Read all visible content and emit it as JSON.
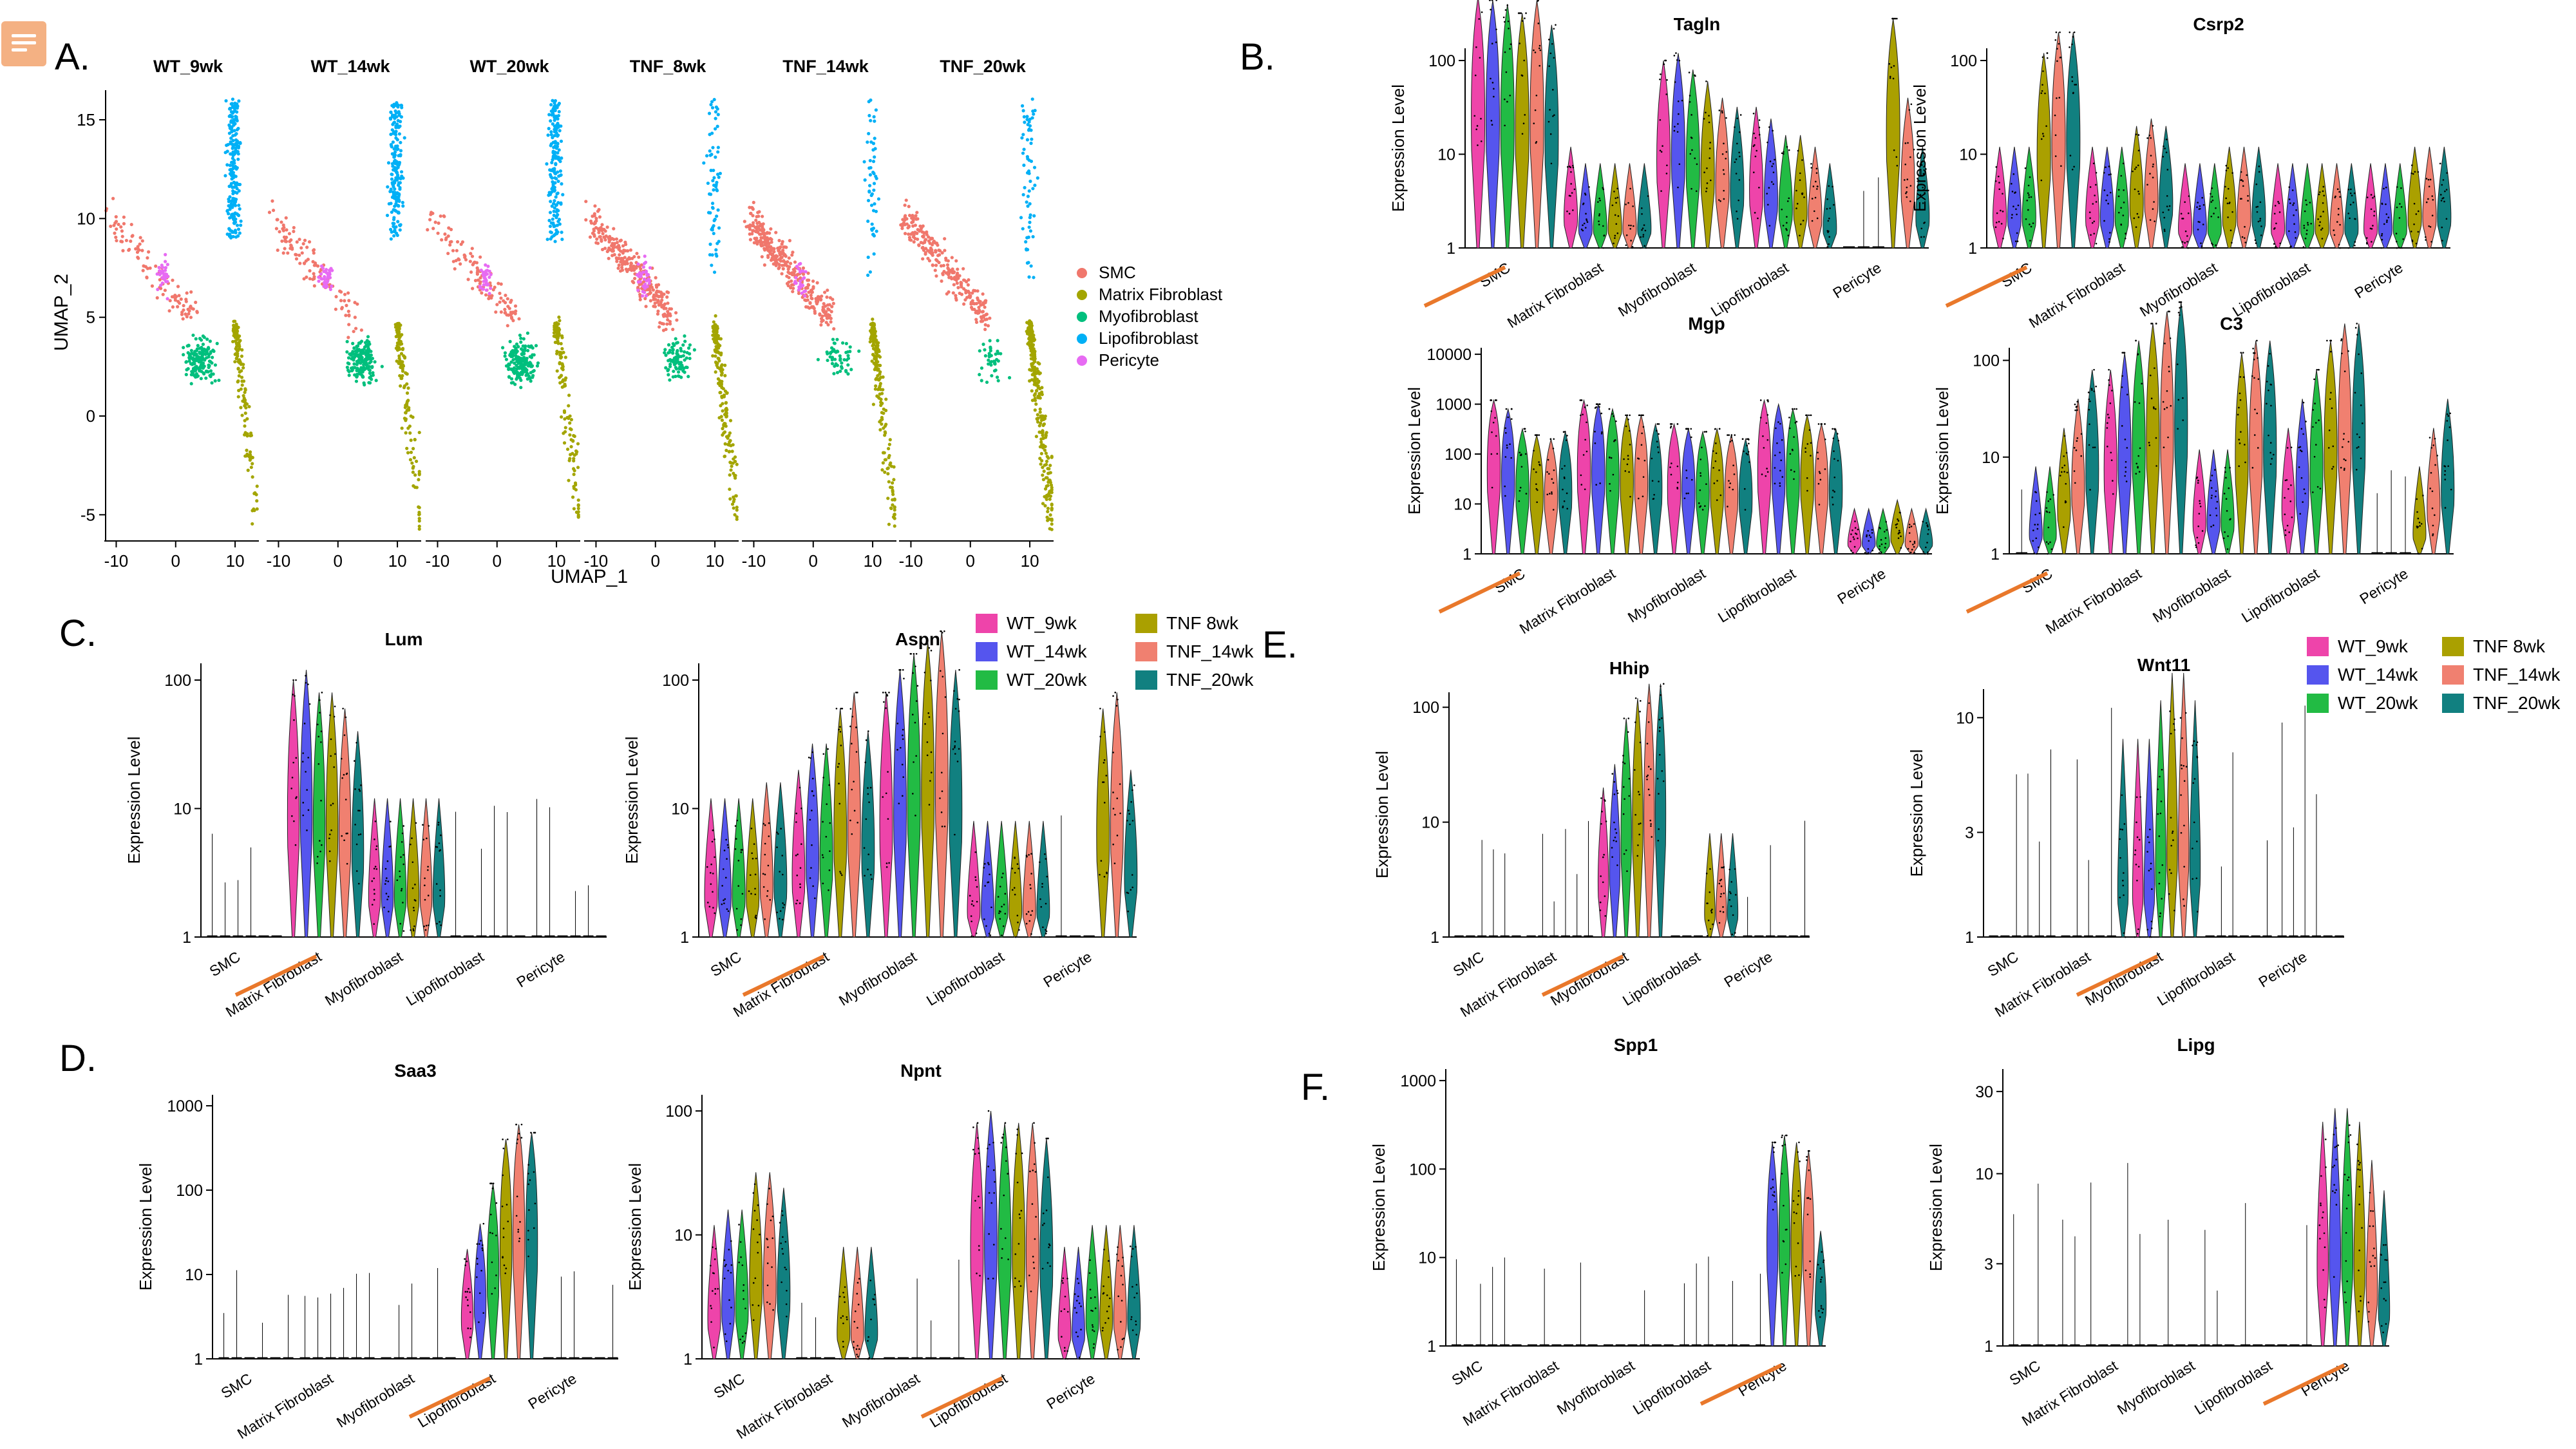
{
  "panel_letters": {
    "a": "A.",
    "b": "B.",
    "c": "C.",
    "d": "D.",
    "e": "E.",
    "f": "F."
  },
  "cell_types": [
    "SMC",
    "Matrix Fibroblast",
    "Myofibroblast",
    "Lipofibroblast",
    "Pericyte"
  ],
  "groups": [
    "WT_9wk",
    "WT_14wk",
    "WT_20wk",
    "TNF_8wk",
    "TNF_14wk",
    "TNF_20wk"
  ],
  "umap_legend": [
    {
      "label": "SMC",
      "color": "#f0776c"
    },
    {
      "label": "Matrix Fibroblast",
      "color": "#a3a500"
    },
    {
      "label": "Myofibroblast",
      "color": "#00bf7d"
    },
    {
      "label": "Lipofibroblast",
      "color": "#00b0f6"
    },
    {
      "label": "Pericyte",
      "color": "#e76bf3"
    }
  ],
  "group_legend_c": [
    {
      "label": "WT_9wk",
      "color": "#ee44aa"
    },
    {
      "label": "WT_14wk",
      "color": "#5555ee"
    },
    {
      "label": "WT_20wk",
      "color": "#22bb44"
    },
    {
      "label": "TNF 8wk",
      "color": "#aaa000"
    },
    {
      "label": "TNF_14wk",
      "color": "#f08070"
    },
    {
      "label": "TNF_20wk",
      "color": "#118080"
    }
  ],
  "group_legend_e": [
    {
      "label": "WT_9wk",
      "color": "#ee44aa"
    },
    {
      "label": "WT_14wk",
      "color": "#5555ee"
    },
    {
      "label": "WT_20wk",
      "color": "#22bb44"
    },
    {
      "label": "TNF 8wk",
      "color": "#aaa000"
    },
    {
      "label": "TNF_14wk",
      "color": "#f08070"
    },
    {
      "label": "TNF_20wk",
      "color": "#118080"
    }
  ],
  "chart_data": [
    {
      "type": "scatter",
      "panel": "A.",
      "subtitles": [
        "WT_9wk",
        "WT_14wk",
        "WT_20wk",
        "TNF_8wk",
        "TNF_14wk",
        "TNF_20wk"
      ],
      "xlabel": "UMAP_1",
      "ylabel": "UMAP_2",
      "xlim": [
        -12,
        14
      ],
      "ylim": [
        -6,
        16.5
      ],
      "xticks": [
        "-10",
        "0",
        "10"
      ],
      "yticks": [
        "-5",
        "0",
        "5",
        "10",
        "15"
      ],
      "cluster_fraction": [
        {
          "SMC": 0.16,
          "Matrix Fibroblast": 0.22,
          "Myofibroblast": 0.24,
          "Lipofibroblast": 0.33,
          "Pericyte": 0.05
        },
        {
          "SMC": 0.16,
          "Matrix Fibroblast": 0.22,
          "Myofibroblast": 0.26,
          "Lipofibroblast": 0.3,
          "Pericyte": 0.06
        },
        {
          "SMC": 0.18,
          "Matrix Fibroblast": 0.22,
          "Myofibroblast": 0.28,
          "Lipofibroblast": 0.27,
          "Pericyte": 0.05
        },
        {
          "SMC": 0.42,
          "Matrix Fibroblast": 0.3,
          "Myofibroblast": 0.13,
          "Lipofibroblast": 0.1,
          "Pericyte": 0.05
        },
        {
          "SMC": 0.5,
          "Matrix Fibroblast": 0.3,
          "Myofibroblast": 0.08,
          "Lipofibroblast": 0.08,
          "Pericyte": 0.04
        },
        {
          "SMC": 0.38,
          "Matrix Fibroblast": 0.46,
          "Myofibroblast": 0.06,
          "Lipofibroblast": 0.1,
          "Pericyte": 0
        }
      ]
    },
    {
      "type": "violin",
      "panel": "B.",
      "title": "Tagln",
      "ylabel": "Expression Level",
      "log": true,
      "yticks": [
        "1",
        "10",
        "100"
      ],
      "highlight": "SMC",
      "medians": [
        [
          120,
          110,
          100,
          80,
          110,
          60
        ],
        [
          3,
          2,
          2,
          2,
          2,
          2
        ],
        [
          25,
          30,
          20,
          15,
          10,
          8
        ],
        [
          8,
          6,
          4,
          4,
          3,
          2
        ],
        [
          1,
          1,
          1,
          70,
          10,
          3
        ]
      ]
    },
    {
      "type": "violin",
      "panel": "B.",
      "title": "Csrp2",
      "ylabel": "Expression Level",
      "log": true,
      "yticks": [
        "1",
        "10",
        "100"
      ],
      "highlight": "SMC",
      "medians": [
        [
          3,
          3,
          3,
          30,
          50,
          50
        ],
        [
          3,
          3,
          3,
          5,
          6,
          5
        ],
        [
          2,
          2,
          2,
          3,
          3,
          3
        ],
        [
          2,
          2,
          2,
          2,
          2,
          2
        ],
        [
          2,
          2,
          2,
          3,
          3,
          3
        ]
      ]
    },
    {
      "type": "violin",
      "panel": "B.",
      "title": "Mgp",
      "ylabel": "Expression Level",
      "log": true,
      "yticks": [
        "1",
        "10",
        "100",
        "1000",
        "10000"
      ],
      "highlight": "SMC",
      "medians": [
        [
          300,
          200,
          80,
          60,
          50,
          70
        ],
        [
          300,
          250,
          200,
          150,
          150,
          100
        ],
        [
          100,
          80,
          70,
          80,
          60,
          50
        ],
        [
          300,
          250,
          200,
          150,
          100,
          80
        ],
        [
          2,
          2,
          2,
          3,
          2,
          2
        ]
      ]
    },
    {
      "type": "violin",
      "panel": "B.",
      "title": "C3",
      "ylabel": "Expression Level",
      "log": true,
      "yticks": [
        "1",
        "10",
        "100"
      ],
      "highlight": "SMC",
      "medians": [
        [
          1,
          2,
          2,
          5,
          10,
          20
        ],
        [
          20,
          30,
          40,
          60,
          80,
          100
        ],
        [
          3,
          3,
          3,
          30,
          40,
          40
        ],
        [
          5,
          10,
          20,
          40,
          60,
          60
        ],
        [
          1,
          1,
          1,
          2,
          5,
          10
        ]
      ]
    },
    {
      "type": "violin",
      "panel": "C.",
      "title": "Lum",
      "ylabel": "Expression Level",
      "log": true,
      "yticks": [
        "1",
        "10",
        "100"
      ],
      "highlight": "Matrix Fibroblast",
      "medians": [
        [
          1,
          1,
          1,
          1,
          1,
          1
        ],
        [
          25,
          30,
          20,
          20,
          15,
          10
        ],
        [
          3,
          3,
          3,
          3,
          3,
          3
        ],
        [
          1,
          1,
          1,
          1,
          1,
          1
        ],
        [
          1,
          1,
          1,
          1,
          1,
          1
        ]
      ]
    },
    {
      "type": "violin",
      "panel": "C.",
      "title": "Aspn",
      "ylabel": "Expression Level",
      "log": true,
      "yticks": [
        "1",
        "10",
        "100"
      ],
      "highlight": "Matrix Fibroblast",
      "medians": [
        [
          3,
          3,
          3,
          3,
          4,
          4
        ],
        [
          5,
          8,
          8,
          15,
          20,
          10
        ],
        [
          20,
          30,
          40,
          50,
          60,
          30
        ],
        [
          2,
          2,
          2,
          2,
          2,
          2
        ],
        [
          1,
          1,
          1,
          15,
          20,
          5
        ]
      ]
    },
    {
      "type": "violin",
      "panel": "D.",
      "title": "Saa3",
      "ylabel": "Expression Level",
      "log": true,
      "yticks": [
        "1",
        "10",
        "100",
        "1000"
      ],
      "highlight": "Lipofibroblast",
      "medians": [
        [
          1,
          1,
          1,
          1,
          1,
          1
        ],
        [
          1,
          1,
          1,
          1,
          1,
          1
        ],
        [
          1,
          1,
          1,
          1,
          1,
          1
        ],
        [
          5,
          10,
          30,
          100,
          150,
          120
        ],
        [
          1,
          1,
          1,
          1,
          1,
          1
        ]
      ]
    },
    {
      "type": "violin",
      "panel": "D.",
      "title": "Npnt",
      "ylabel": "Expression Level",
      "log": true,
      "yticks": [
        "1",
        "10",
        "100"
      ],
      "highlight": "Lipofibroblast",
      "medians": [
        [
          3,
          4,
          4,
          8,
          8,
          6
        ],
        [
          1,
          1,
          1,
          2,
          2,
          2
        ],
        [
          1,
          1,
          1,
          1,
          1,
          1
        ],
        [
          20,
          25,
          20,
          20,
          20,
          15
        ],
        [
          2,
          2,
          3,
          3,
          3,
          3
        ]
      ]
    },
    {
      "type": "violin",
      "panel": "E.",
      "title": "Hhip",
      "ylabel": "Expression Level",
      "log": true,
      "yticks": [
        "1",
        "10",
        "100"
      ],
      "highlight": "Myofibroblast",
      "medians": [
        [
          1,
          1,
          1,
          1,
          1,
          1
        ],
        [
          1,
          1,
          1,
          1,
          1,
          1
        ],
        [
          5,
          8,
          20,
          30,
          40,
          40
        ],
        [
          1,
          1,
          1,
          2,
          2,
          2
        ],
        [
          1,
          1,
          1,
          1,
          1,
          1
        ]
      ]
    },
    {
      "type": "violin",
      "panel": "E.",
      "title": "Wnt11",
      "ylabel": "Expression Level",
      "log": true,
      "yticks": [
        "1",
        "3",
        "10"
      ],
      "highlight": "Myofibroblast",
      "medians": [
        [
          1,
          1,
          1,
          1,
          1,
          1
        ],
        [
          1,
          1,
          1,
          1,
          1,
          2
        ],
        [
          2,
          2,
          3,
          4,
          4,
          3
        ],
        [
          1,
          1,
          1,
          1,
          1,
          1
        ],
        [
          1,
          1,
          1,
          1,
          1,
          1
        ]
      ]
    },
    {
      "type": "violin",
      "panel": "F.",
      "title": "Spp1",
      "ylabel": "Expression Level",
      "log": true,
      "yticks": [
        "1",
        "10",
        "100",
        "1000"
      ],
      "highlight": "Pericyte",
      "medians": [
        [
          1,
          1,
          1,
          1,
          1,
          1
        ],
        [
          1,
          1,
          1,
          1,
          1,
          1
        ],
        [
          1,
          1,
          1,
          1,
          1,
          1
        ],
        [
          1,
          1,
          1,
          1,
          1,
          1
        ],
        [
          1,
          50,
          60,
          50,
          40,
          5
        ]
      ]
    },
    {
      "type": "violin",
      "panel": "F.",
      "title": "Lipg",
      "ylabel": "Expression Level",
      "log": true,
      "yticks": [
        "1",
        "3",
        "10",
        "30"
      ],
      "highlight": "Pericyte",
      "medians": [
        [
          1,
          1,
          1,
          1,
          1,
          1
        ],
        [
          1,
          1,
          1,
          1,
          1,
          1
        ],
        [
          1,
          1,
          1,
          1,
          1,
          1
        ],
        [
          1,
          1,
          1,
          1,
          1,
          1
        ],
        [
          5,
          6,
          6,
          5,
          3,
          2
        ]
      ]
    }
  ]
}
